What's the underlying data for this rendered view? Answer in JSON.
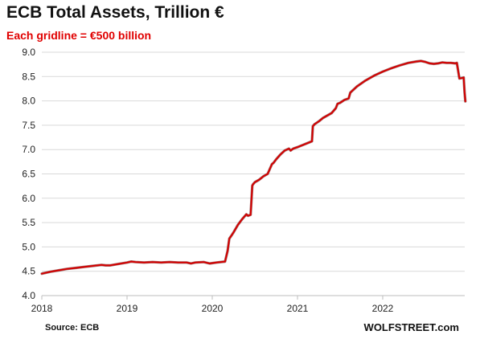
{
  "chart_data": {
    "type": "line",
    "title": "ECB Total Assets, Trillion €",
    "subtitle": "Each gridline = €500 billion",
    "xlabel": "",
    "ylabel": "",
    "xlim": [
      2018.0,
      2023.0
    ],
    "ylim": [
      4.0,
      9.0
    ],
    "y_ticks": [
      "4.0",
      "4.5",
      "5.0",
      "5.5",
      "6.0",
      "6.5",
      "7.0",
      "7.5",
      "8.0",
      "8.5",
      "9.0"
    ],
    "x_ticks": [
      "2018",
      "2019",
      "2020",
      "2021",
      "2022"
    ],
    "grid": true,
    "legend": "none",
    "line_color": "#d40000",
    "series": [
      {
        "x": [
          2018.0,
          2018.1,
          2018.2,
          2018.3,
          2018.4,
          2018.5,
          2018.6,
          2018.7,
          2018.75,
          2018.8,
          2018.9,
          2019.0,
          2019.05,
          2019.1,
          2019.2,
          2019.3,
          2019.4,
          2019.5,
          2019.6,
          2019.7,
          2019.75,
          2019.8,
          2019.9,
          2019.97,
          2020.05,
          2020.15,
          2020.18,
          2020.2,
          2020.22,
          2020.25,
          2020.3,
          2020.35,
          2020.4,
          2020.42,
          2020.45,
          2020.47,
          2020.48,
          2020.5,
          2020.55,
          2020.6,
          2020.65,
          2020.7,
          2020.72,
          2020.75,
          2020.8,
          2020.85,
          2020.9,
          2020.92,
          2020.95,
          2021.0,
          2021.1,
          2021.17,
          2021.18,
          2021.2,
          2021.25,
          2021.3,
          2021.4,
          2021.45,
          2021.47,
          2021.5,
          2021.55,
          2021.6,
          2021.62,
          2021.65,
          2021.7,
          2021.8,
          2021.9,
          2022.0,
          2022.1,
          2022.2,
          2022.3,
          2022.4,
          2022.45,
          2022.5,
          2022.55,
          2022.6,
          2022.65,
          2022.7,
          2022.75,
          2022.8,
          2022.85,
          2022.87,
          2022.9,
          2022.93,
          2022.95,
          2022.96,
          2022.97
        ],
        "y": [
          4.45,
          4.49,
          4.52,
          4.55,
          4.57,
          4.59,
          4.61,
          4.63,
          4.62,
          4.62,
          4.65,
          4.68,
          4.7,
          4.69,
          4.68,
          4.69,
          4.68,
          4.69,
          4.68,
          4.68,
          4.66,
          4.68,
          4.69,
          4.66,
          4.68,
          4.7,
          4.92,
          5.17,
          5.22,
          5.3,
          5.45,
          5.57,
          5.67,
          5.64,
          5.66,
          6.26,
          6.29,
          6.33,
          6.38,
          6.45,
          6.5,
          6.7,
          6.73,
          6.8,
          6.9,
          6.98,
          7.02,
          6.98,
          7.02,
          7.05,
          7.12,
          7.17,
          7.48,
          7.52,
          7.58,
          7.65,
          7.75,
          7.85,
          7.94,
          7.96,
          8.02,
          8.05,
          8.17,
          8.22,
          8.3,
          8.42,
          8.52,
          8.6,
          8.67,
          8.73,
          8.78,
          8.81,
          8.82,
          8.8,
          8.77,
          8.76,
          8.77,
          8.79,
          8.78,
          8.78,
          8.77,
          8.78,
          8.46,
          8.47,
          8.48,
          8.18,
          7.99
        ]
      }
    ]
  },
  "footer": {
    "source": "Source: ECB",
    "brand": "WOLFSTREET.com"
  }
}
